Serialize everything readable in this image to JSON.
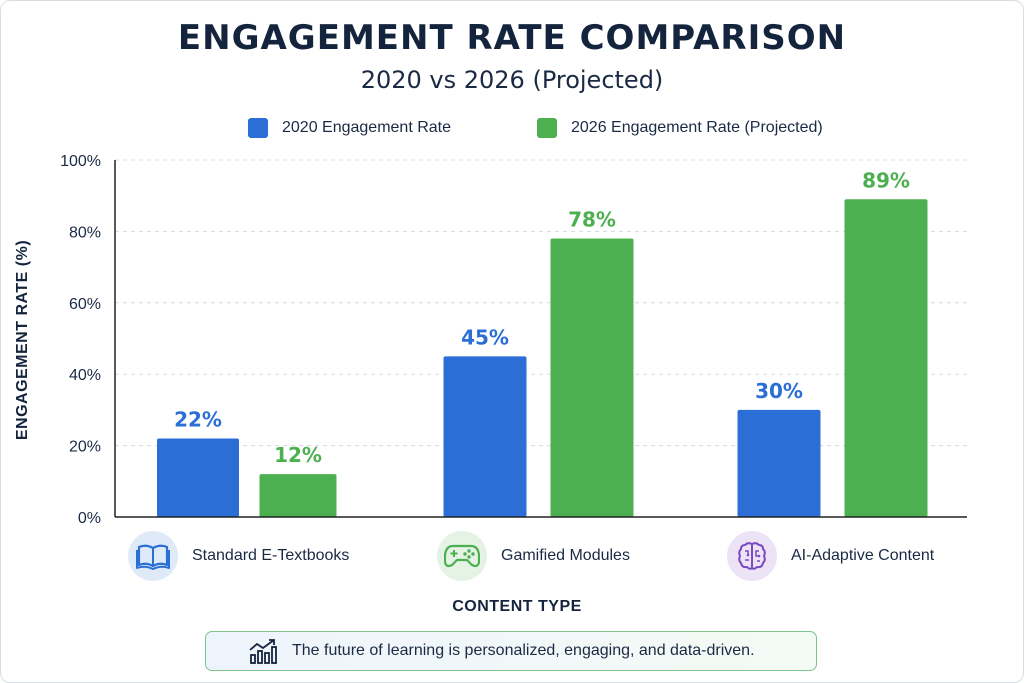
{
  "chart_data": {
    "type": "bar",
    "title": "ENGAGEMENT RATE COMPARISON",
    "subtitle": "2020 vs 2026 (Projected)",
    "categories": [
      "Standard E-Textbooks",
      "Gamified Modules",
      "AI-Adaptive Content"
    ],
    "series": [
      {
        "name": "2020 Engagement Rate",
        "values": [
          22,
          45,
          30
        ],
        "labels": [
          "22%",
          "45%",
          "30%"
        ]
      },
      {
        "name": "2026 Engagement Rate (Projected)",
        "values": [
          12,
          78,
          89
        ],
        "labels": [
          "12%",
          "78%",
          "89%"
        ]
      }
    ],
    "xlabel": "CONTENT TYPE",
    "ylabel": "ENGAGEMENT RATE (%)",
    "ylim": [
      0,
      100
    ],
    "yticks": [
      "0%",
      "20%",
      "40%",
      "60%",
      "80%",
      "100%"
    ],
    "grid": true,
    "legend_position": "top-center"
  },
  "colors": {
    "series_2020": "#2a6ed6",
    "series_2026": "#4caf50",
    "axis": "#222222",
    "grid": "#d5d9df"
  },
  "category_icons": [
    "book-icon",
    "gamepad-icon",
    "brain-icon"
  ],
  "footer": {
    "icon": "growth-chart-icon",
    "text": "The future of learning is personalized, engaging, and data-driven."
  }
}
